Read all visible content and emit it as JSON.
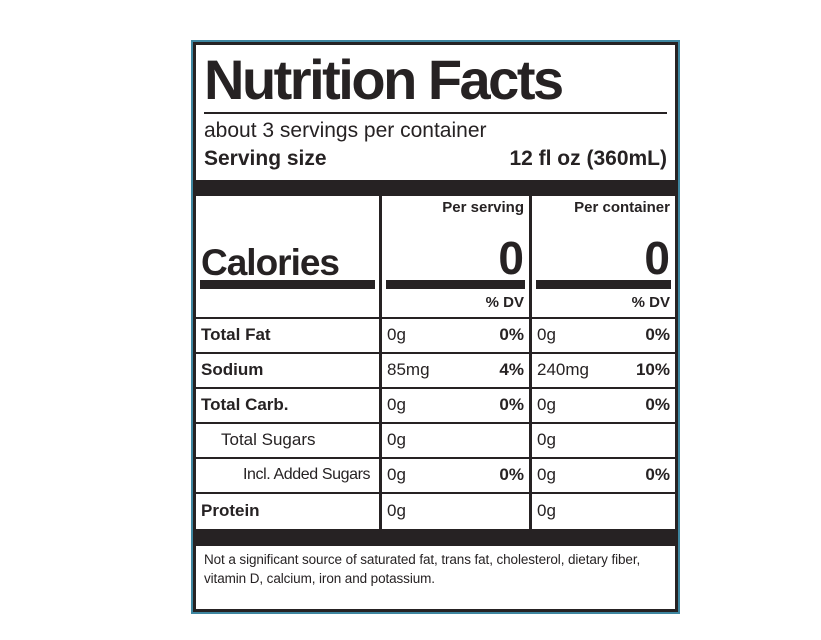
{
  "colors": {
    "ink": "#262223",
    "accent_outline": "#3e86a0",
    "background": "#ffffff"
  },
  "label": {
    "title": "Nutrition Facts",
    "servings_line": "about 3 servings per container",
    "serving_size": {
      "label": "Serving size",
      "value": "12 fl oz (360mL)"
    },
    "calories": {
      "label": "Calories",
      "per_serving_header": "Per serving",
      "per_serving_value": "0",
      "per_container_header": "Per container",
      "per_container_value": "0"
    },
    "dv": {
      "per_serving": "% DV",
      "per_container": "% DV"
    },
    "rows": [
      {
        "name": "Total Fat",
        "ps_amount": "0g",
        "ps_dv": "0%",
        "pc_amount": "0g",
        "pc_dv": "0%"
      },
      {
        "name": "Sodium",
        "ps_amount": "85mg",
        "ps_dv": "4%",
        "pc_amount": "240mg",
        "pc_dv": "10%"
      },
      {
        "name": "Total Carb.",
        "ps_amount": "0g",
        "ps_dv": "0%",
        "pc_amount": "0g",
        "pc_dv": "0%"
      },
      {
        "name": "Total Sugars",
        "ps_amount": "0g",
        "ps_dv": "",
        "pc_amount": "0g",
        "pc_dv": ""
      },
      {
        "name": "Incl. Added Sugars",
        "ps_amount": "0g",
        "ps_dv": "0%",
        "pc_amount": "0g",
        "pc_dv": "0%"
      },
      {
        "name": "Protein",
        "ps_amount": "0g",
        "ps_dv": "",
        "pc_amount": "0g",
        "pc_dv": ""
      }
    ],
    "footnote": "Not a significant source of saturated fat, trans fat, cholesterol, dietary fiber, vitamin D, calcium, iron and potassium."
  }
}
